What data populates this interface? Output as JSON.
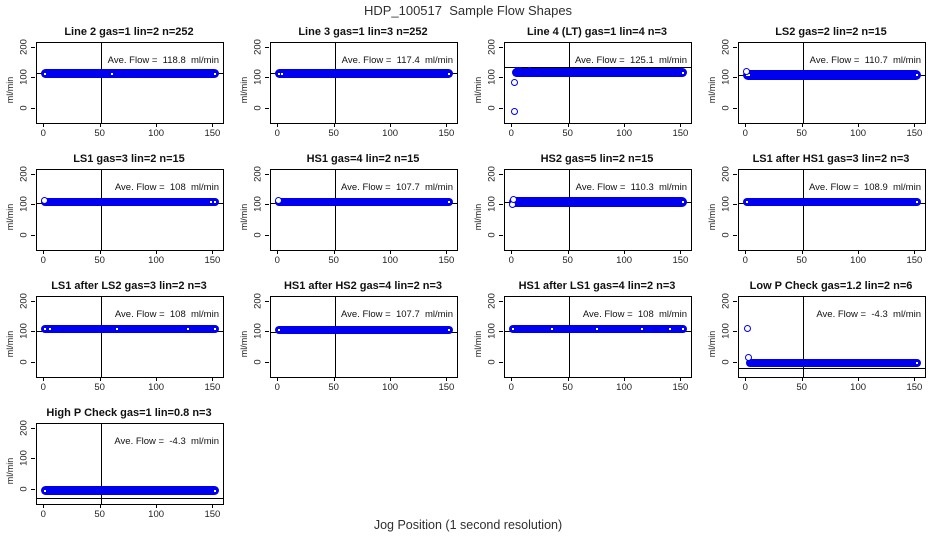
{
  "page_title": "HDP_100517  Sample Flow Shapes",
  "x_axis_label": "Jog Position (1 second resolution)",
  "colors": {
    "point_blue": "#0000ee",
    "axis_black": "#000000",
    "background": "#ffffff"
  },
  "chart_data": {
    "type": "scatter",
    "title": "HDP_100517  Sample Flow Shapes",
    "xlabel": "Jog Position (1 second resolution)",
    "layout": "4-column small-multiples grid, 13 panels",
    "axes": {
      "xlim": [
        -6.5,
        158.5
      ],
      "ylim": [
        -45,
        215
      ],
      "xticks": [
        0,
        50,
        100,
        150
      ],
      "yticks": [
        0,
        100,
        200
      ],
      "ylabel": "ml/min",
      "vline_x": 50,
      "grid": false
    },
    "plots": [
      {
        "id": "line2",
        "title": "Line 2 gas=1 lin=2 n=252",
        "gas": "1",
        "lin": "2",
        "n": 252,
        "ave_flow": 118.8,
        "annotation": "Ave. Flow =  118.8  ml/min",
        "band": {
          "x1": 0,
          "x2": 152,
          "center": 116,
          "h": 9
        },
        "line_y": 118.8,
        "specks": [
          0.6,
          60,
          151.4
        ],
        "outliers": [],
        "dots": []
      },
      {
        "id": "line3",
        "title": "Line 3 gas=1 lin=3 n=252",
        "gas": "1",
        "lin": "3",
        "n": 252,
        "ave_flow": 117.4,
        "annotation": "Ave. Flow =  117.4  ml/min",
        "band": {
          "x1": 0,
          "x2": 152,
          "center": 115,
          "h": 9
        },
        "line_y": 117.4,
        "specks": [
          0.6,
          3,
          151.4
        ],
        "outliers": [],
        "dots": []
      },
      {
        "id": "line4-lt",
        "title": "Line 4 (LT) gas=1 lin=4 n=3",
        "gas": "1",
        "lin": "4",
        "n": 3,
        "ave_flow": 125.1,
        "annotation": "Ave. Flow =  125.1  ml/min",
        "band": {
          "x1": 2,
          "x2": 152,
          "center": 119,
          "h": 9
        },
        "line_y": 136,
        "specks": [
          151.4
        ],
        "outliers": [
          [
            2,
            88
          ],
          [
            2,
            -8
          ]
        ],
        "dots": [
          [
            4,
            133
          ],
          [
            7,
            134
          ],
          [
            11,
            132
          ],
          [
            15,
            133
          ],
          [
            6,
            110
          ],
          [
            10,
            108
          ],
          [
            14,
            110
          ],
          [
            19,
            109
          ]
        ]
      },
      {
        "id": "ls2",
        "title": "LS2 gas=2 lin=2 n=15",
        "gas": "2",
        "lin": "2",
        "n": 15,
        "ave_flow": 110.7,
        "annotation": "Ave. Flow =  110.7  ml/min",
        "band": {
          "x1": 0,
          "x2": 152,
          "center": 111,
          "h": 10
        },
        "line_y": 110.7,
        "specks": [
          0.6,
          2.5,
          151.4
        ],
        "outliers": [
          [
            0.5,
            121
          ]
        ],
        "dots": []
      },
      {
        "id": "ls1",
        "title": "LS1 gas=3 lin=2 n=15",
        "gas": "3",
        "lin": "2",
        "n": 15,
        "ave_flow": 108,
        "annotation": "Ave. Flow =  108  ml/min",
        "band": {
          "x1": 0,
          "x2": 152,
          "center": 110,
          "h": 8
        },
        "line_y": 108,
        "specks": [
          0.6,
          148,
          151.4
        ],
        "outliers": [
          [
            0.5,
            117
          ]
        ],
        "dots": []
      },
      {
        "id": "hs1",
        "title": "HS1 gas=4 lin=2 n=15",
        "gas": "4",
        "lin": "2",
        "n": 15,
        "ave_flow": 107.7,
        "annotation": "Ave. Flow =  107.7  ml/min",
        "band": {
          "x1": 0,
          "x2": 152,
          "center": 110,
          "h": 8
        },
        "line_y": 107.7,
        "specks": [
          0.6,
          151.4
        ],
        "outliers": [
          [
            0.5,
            116
          ]
        ],
        "dots": []
      },
      {
        "id": "hs2",
        "title": "HS2 gas=5 lin=2 n=15",
        "gas": "5",
        "lin": "2",
        "n": 15,
        "ave_flow": 110.3,
        "annotation": "Ave. Flow =  110.3  ml/min",
        "band": {
          "x1": 0,
          "x2": 152,
          "center": 111,
          "h": 10
        },
        "line_y": 110.3,
        "specks": [
          0.6,
          151.4
        ],
        "outliers": [
          [
            0.5,
            104
          ],
          [
            1,
            119
          ]
        ],
        "dots": []
      },
      {
        "id": "ls1-after-hs1",
        "title": "LS1 after HS1 gas=3 lin=2 n=3",
        "gas": "3",
        "lin": "2",
        "n": 3,
        "ave_flow": 108.9,
        "annotation": "Ave. Flow =  108.9  ml/min",
        "band": {
          "x1": 0,
          "x2": 152,
          "center": 110,
          "h": 8
        },
        "line_y": 108.9,
        "specks": [
          0.6,
          151.4
        ],
        "outliers": [],
        "dots": []
      },
      {
        "id": "ls1-after-ls2",
        "title": "LS1 after LS2 gas=3 lin=2 n=3",
        "gas": "3",
        "lin": "2",
        "n": 3,
        "ave_flow": 108,
        "annotation": "Ave. Flow =  108  ml/min",
        "band": {
          "x1": 0,
          "x2": 152,
          "center": 111,
          "h": 8
        },
        "line_y": 104,
        "specks": [
          0.6,
          5,
          64,
          127,
          151.4
        ],
        "outliers": [],
        "dots": []
      },
      {
        "id": "hs1-after-hs2",
        "title": "HS1 after HS2 gas=4 lin=2 n=3",
        "gas": "4",
        "lin": "2",
        "n": 3,
        "ave_flow": 107.7,
        "annotation": "Ave. Flow =  107.7  ml/min",
        "band": {
          "x1": 0,
          "x2": 152,
          "center": 109,
          "h": 8
        },
        "line_y": 102,
        "specks": [
          0.6,
          151.4
        ],
        "outliers": [],
        "dots": []
      },
      {
        "id": "hs1-after-ls1",
        "title": "HS1 after LS1 gas=4 lin=2 n=3",
        "gas": "4",
        "lin": "2",
        "n": 3,
        "ave_flow": 108,
        "annotation": "Ave. Flow =  108  ml/min",
        "band": {
          "x1": 0,
          "x2": 152,
          "center": 111,
          "h": 8
        },
        "line_y": 104,
        "specks": [
          0.6,
          35,
          75,
          115,
          140,
          151.4
        ],
        "outliers": [],
        "dots": []
      },
      {
        "id": "low-p-check",
        "title": "Low P Check gas=1.2 lin=2 n=6",
        "gas": "1.2",
        "lin": "2",
        "n": 6,
        "ave_flow": -4.3,
        "annotation": "Ave. Flow =  -4.3  ml/min",
        "band": {
          "x1": 2,
          "x2": 152,
          "center": 2,
          "h": 8
        },
        "line_y": -16,
        "specks": [
          151.4
        ],
        "outliers": [
          [
            0.7,
            112
          ],
          [
            1.8,
            20
          ]
        ],
        "dots": []
      },
      {
        "id": "high-p-check",
        "title": "High P Check gas=1 lin=0.8 n=3",
        "gas": "1",
        "lin": "0.8",
        "n": 3,
        "ave_flow": -4.3,
        "annotation": "Ave. Flow =  -4.3  ml/min",
        "band": {
          "x1": 0,
          "x2": 152,
          "center": -2,
          "h": 9
        },
        "line_y": -26,
        "specks": [
          0.6,
          151.4
        ],
        "outliers": [],
        "dots": []
      }
    ]
  }
}
